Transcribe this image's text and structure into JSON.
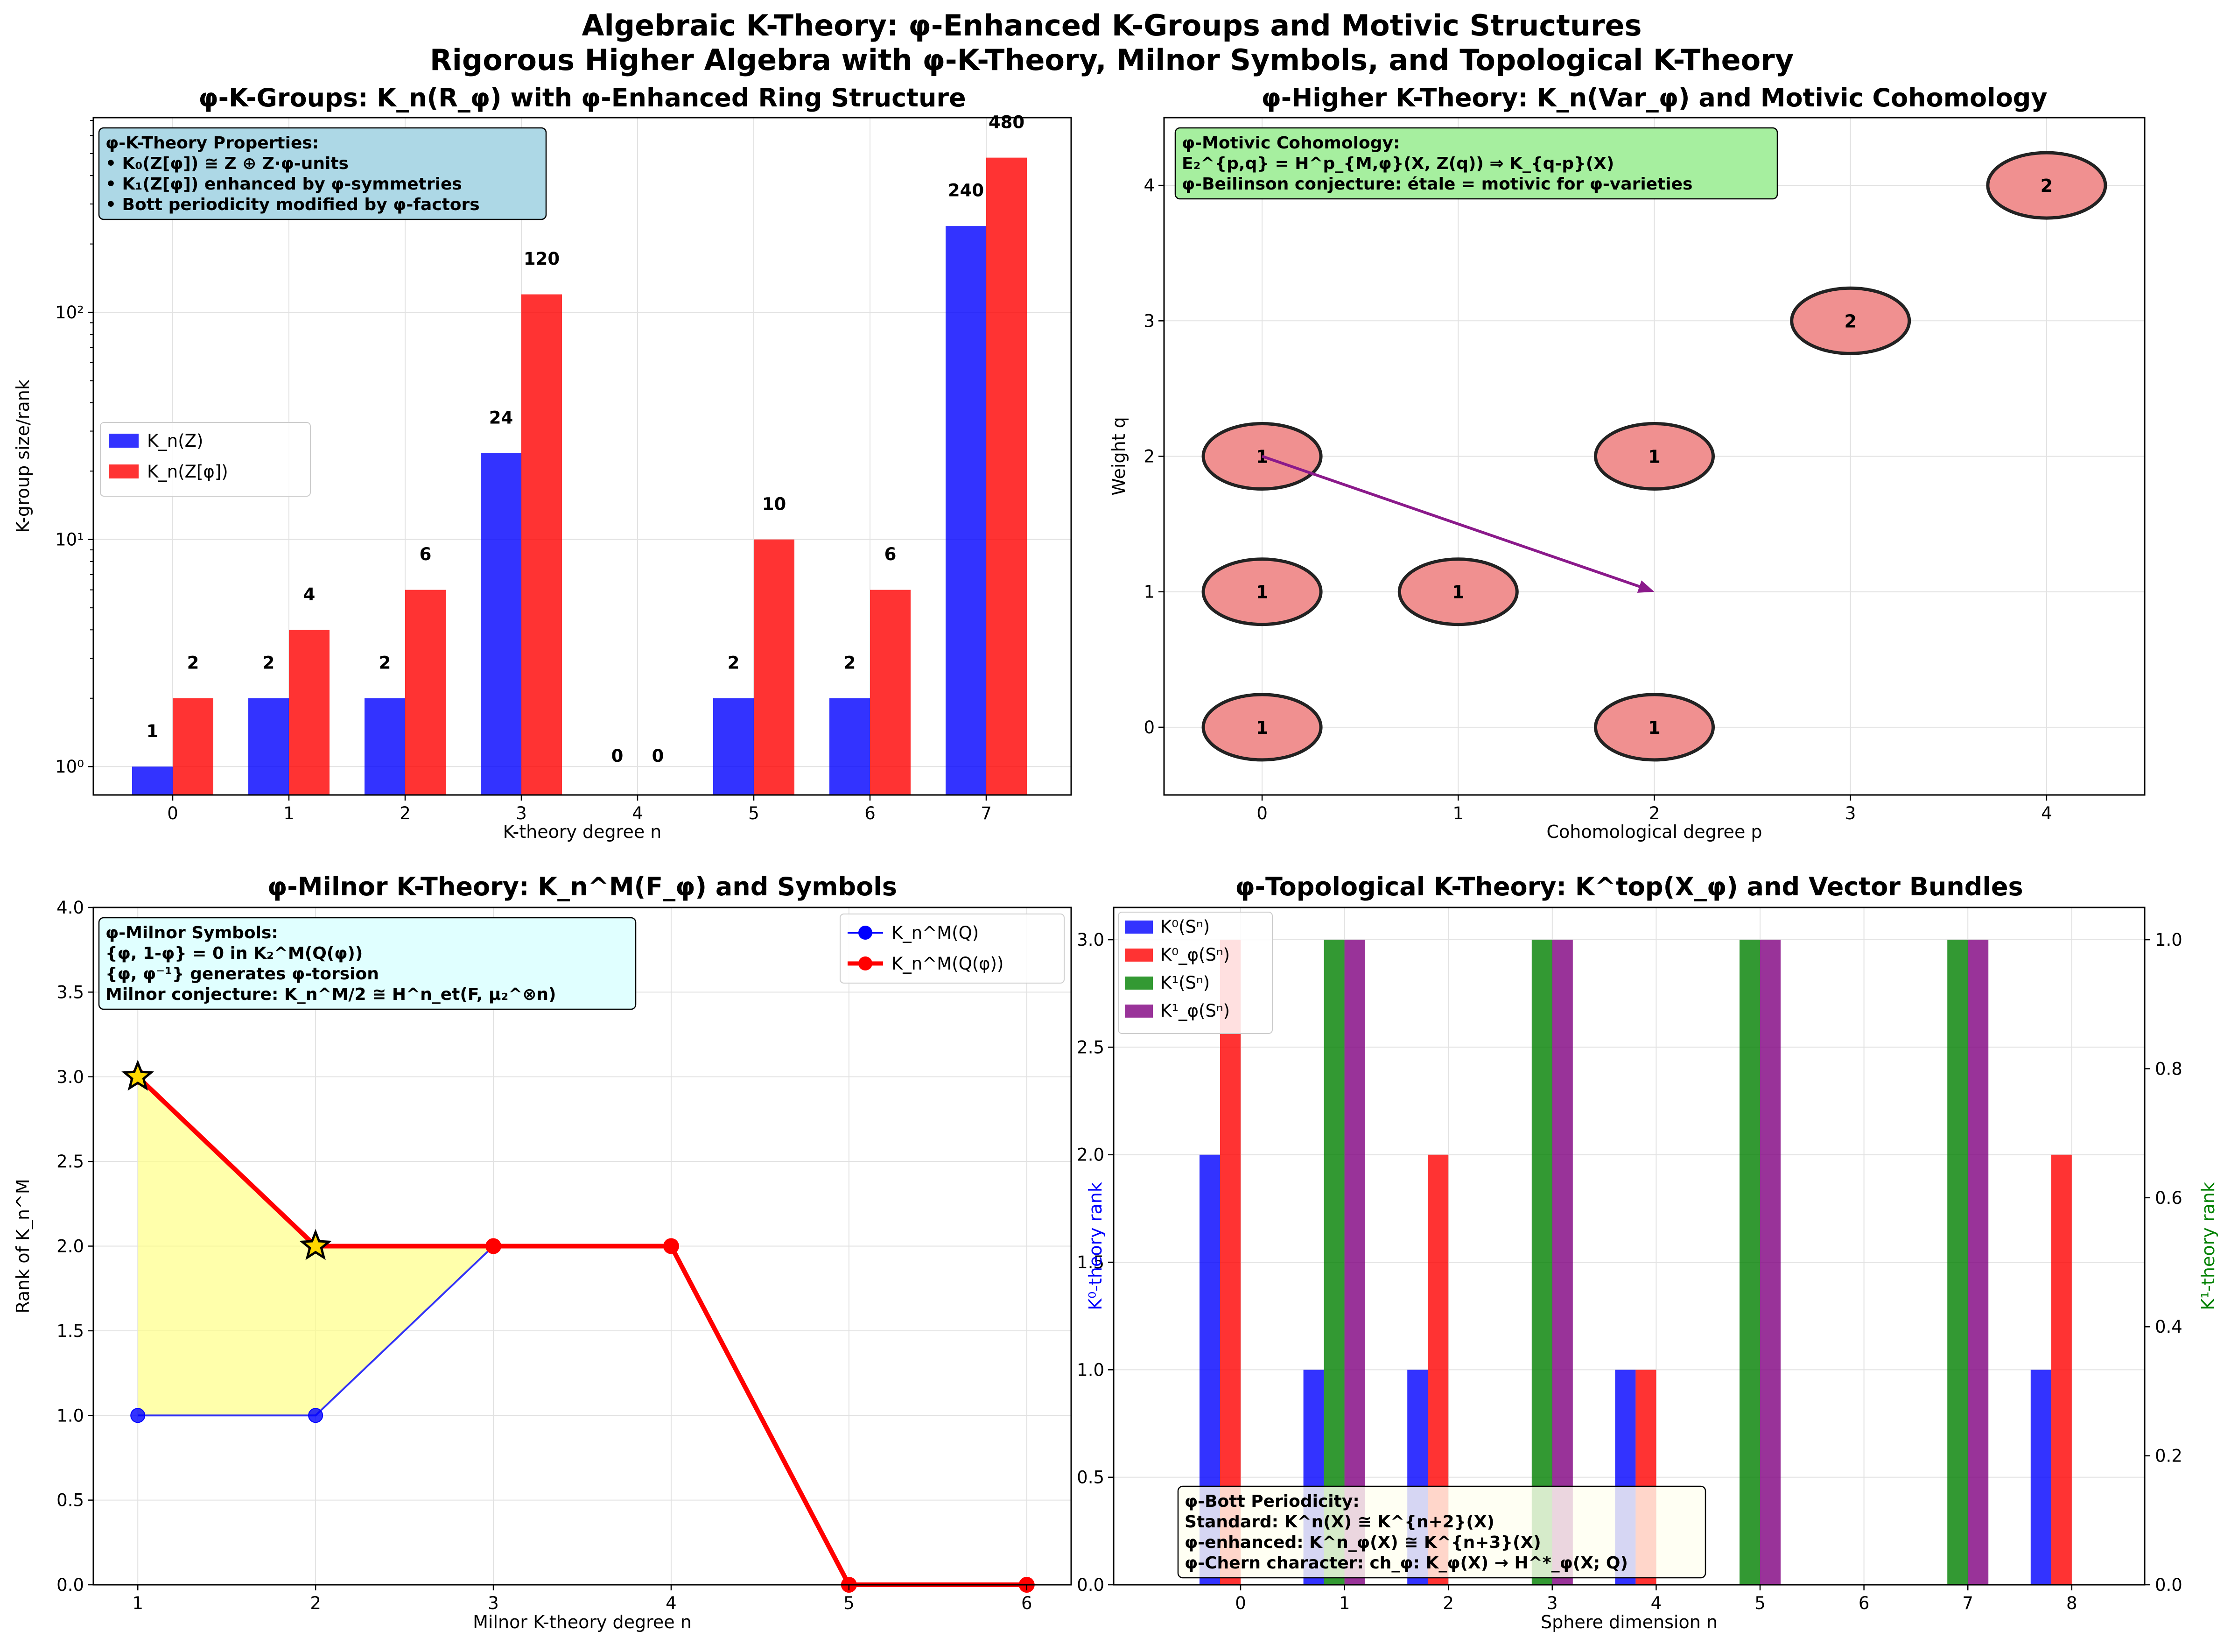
{
  "suptitle": {
    "line1": "Algebraic K-Theory: φ-Enhanced K-Groups and Motivic Structures",
    "line2": "Rigorous Higher Algebra with φ-K-Theory, Milnor Symbols, and Topological K-Theory"
  },
  "chart_data": [
    {
      "type": "bar",
      "title": "φ-K-Groups: K_n(R_φ) with φ-Enhanced Ring Structure",
      "xlabel": "K-theory degree n",
      "ylabel": "K-group size/rank",
      "yscale": "log",
      "categories": [
        "0",
        "1",
        "2",
        "3",
        "4",
        "5",
        "6",
        "7"
      ],
      "series": [
        {
          "name": "K_n(Z)",
          "color": "#0000ff",
          "values": [
            1,
            2,
            2,
            24,
            0,
            2,
            2,
            240
          ]
        },
        {
          "name": "K_n(Z[φ])",
          "color": "#ff0000",
          "values": [
            2,
            4,
            6,
            120,
            0,
            10,
            6,
            480
          ]
        }
      ],
      "data_labels": [
        [
          "1",
          "2",
          "2",
          "24",
          "0",
          "2",
          "2",
          "240"
        ],
        [
          "2",
          "4",
          "6",
          "120",
          "0",
          "10",
          "6",
          "480"
        ]
      ],
      "y_tick_labels": [
        "10⁰",
        "10¹",
        "10²"
      ],
      "legend": "center-left",
      "grid": true,
      "annotation": [
        "φ-K-Theory Properties:",
        "• K₀(Z[φ]) ≅ Z ⊕ Z·φ-units",
        "• K₁(Z[φ]) enhanced by φ-symmetries",
        "• Bott periodicity modified by φ-factors"
      ]
    },
    {
      "type": "scatter",
      "title": "φ-Higher K-Theory: K_n(Var_φ) and Motivic Cohomology",
      "xlabel": "Cohomological degree p",
      "ylabel": "Weight q",
      "xlim": [
        -0.5,
        4.5
      ],
      "ylim": [
        -0.5,
        4.5
      ],
      "x_ticks": [
        "0",
        "1",
        "2",
        "3",
        "4"
      ],
      "y_ticks": [
        "0",
        "1",
        "2",
        "3",
        "4"
      ],
      "points": [
        {
          "p": 0,
          "q": 0,
          "label": "1"
        },
        {
          "p": 2,
          "q": 0,
          "label": "1"
        },
        {
          "p": 0,
          "q": 1,
          "label": "1"
        },
        {
          "p": 1,
          "q": 1,
          "label": "1"
        },
        {
          "p": 0,
          "q": 2,
          "label": "1"
        },
        {
          "p": 2,
          "q": 2,
          "label": "1"
        },
        {
          "p": 3,
          "q": 3,
          "label": "2"
        },
        {
          "p": 4,
          "q": 4,
          "label": "2"
        }
      ],
      "arrow": {
        "from": [
          0,
          2
        ],
        "to": [
          2,
          1
        ],
        "color": "#8b1a8b"
      },
      "marker_color": "#f09090",
      "grid": true,
      "annotation": [
        "φ-Motivic Cohomology:",
        "E₂^{p,q} = H^p_{M,φ}(X, Z(q)) ⇒ K_{q-p}(X)",
        "φ-Beilinson conjecture: étale = motivic for φ-varieties"
      ]
    },
    {
      "type": "line",
      "title": "φ-Milnor K-Theory: K_n^M(F_φ) and Symbols",
      "xlabel": "Milnor K-theory degree n",
      "ylabel": "Rank of K_n^M",
      "xlim": [
        0.75,
        6.25
      ],
      "ylim": [
        0,
        4
      ],
      "x_ticks": [
        "1",
        "2",
        "3",
        "4",
        "5",
        "6"
      ],
      "y_ticks": [
        "0.0",
        "0.5",
        "1.0",
        "1.5",
        "2.0",
        "2.5",
        "3.0",
        "3.5",
        "4.0"
      ],
      "x": [
        1,
        2,
        3,
        4,
        5,
        6
      ],
      "series": [
        {
          "name": "K_n^M(Q)",
          "color": "#0000ff",
          "values": [
            1,
            1,
            2,
            2,
            null,
            null
          ]
        },
        {
          "name": "K_n^M(Q(φ))",
          "color": "#ff0000",
          "values": [
            3,
            2,
            2,
            2,
            0,
            0
          ]
        }
      ],
      "star_points": [
        1,
        2
      ],
      "fill_between": {
        "color": "#ffff88"
      },
      "legend": "top-right",
      "grid": true,
      "annotation": [
        "φ-Milnor Symbols:",
        "{φ, 1-φ} = 0 in K₂^M(Q(φ))",
        "{φ, φ⁻¹} generates φ-torsion",
        "Milnor conjecture: K_n^M/2 ≅ H^n_et(F, μ₂^⊗n)"
      ]
    },
    {
      "type": "bar",
      "title": "φ-Topological K-Theory: K^top(X_φ) and Vector Bundles",
      "xlabel": "Sphere dimension n",
      "ylabel_left": "K⁰-theory rank",
      "ylabel_right": "K¹-theory rank",
      "categories": [
        "0",
        "1",
        "2",
        "3",
        "4",
        "5",
        "6",
        "7",
        "8"
      ],
      "left_ylim": [
        0,
        3.15
      ],
      "right_ylim": [
        0,
        1.05
      ],
      "left_ticks": [
        "0.0",
        "0.5",
        "1.0",
        "1.5",
        "2.0",
        "2.5",
        "3.0"
      ],
      "right_ticks": [
        "0.0",
        "0.2",
        "0.4",
        "0.6",
        "0.8",
        "1.0"
      ],
      "series": [
        {
          "name": "K⁰(Sⁿ)",
          "color": "#0000ff",
          "axis": "left",
          "values": [
            2,
            1,
            1,
            0,
            1,
            0,
            0,
            0,
            1
          ]
        },
        {
          "name": "K⁰_φ(Sⁿ)",
          "color": "#ff0000",
          "axis": "left",
          "values": [
            3,
            0,
            2,
            0,
            1,
            0,
            0,
            0,
            2
          ]
        },
        {
          "name": "K¹(Sⁿ)",
          "color": "#008000",
          "axis": "right",
          "values": [
            0,
            1,
            0,
            1,
            0,
            1,
            0,
            1,
            0
          ]
        },
        {
          "name": "K¹_φ(Sⁿ)",
          "color": "#800080",
          "axis": "right",
          "values": [
            0,
            1,
            0,
            1,
            0,
            1,
            0,
            1,
            0
          ]
        }
      ],
      "legend": "top-left",
      "grid": true,
      "annotation": [
        "φ-Bott Periodicity:",
        "Standard: K^n(X) ≅ K^{n+2}(X)",
        "φ-enhanced: K^n_φ(X) ≅ K^{n+3}(X)",
        "φ-Chern character: ch_φ: K_φ(X) → H^*_φ(X; Q)"
      ]
    }
  ]
}
